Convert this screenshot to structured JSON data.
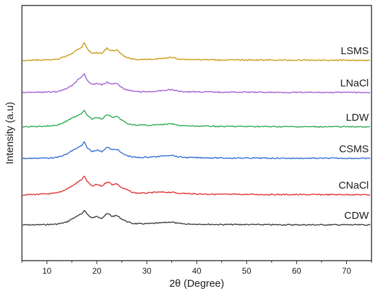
{
  "chart_data": {
    "type": "line",
    "title": "",
    "xlabel": "2θ (Degree)",
    "ylabel": "Intensity (a.u)",
    "xlim": [
      5,
      75
    ],
    "xticks": [
      10,
      20,
      30,
      40,
      50,
      60,
      70
    ],
    "yticks_shown": false,
    "grid": false,
    "legend": "labels at right end of each curve",
    "stacked_offset": true,
    "x": [
      5,
      8,
      10,
      12,
      13,
      14,
      15,
      16,
      17,
      17.5,
      18,
      19,
      20,
      21,
      22,
      22.5,
      23,
      24,
      25,
      26,
      27,
      28,
      30,
      32,
      34,
      35,
      36,
      38,
      40,
      45,
      50,
      55,
      60,
      65,
      70,
      75
    ],
    "series": [
      {
        "name": "CDW",
        "color": "#3a3a3a",
        "values": [
          0,
          0.2,
          0.5,
          1.0,
          2.0,
          3.5,
          7,
          10,
          13,
          17.5,
          13,
          8,
          10,
          8,
          13,
          12.5,
          10,
          11,
          7,
          4,
          2,
          1.5,
          1.5,
          2,
          3,
          3.5,
          2,
          1,
          1,
          0.5,
          0.5,
          0.3,
          0.2,
          0.2,
          0.2,
          0
        ]
      },
      {
        "name": "CNaCl",
        "color": "#e03030",
        "values": [
          0,
          0.5,
          1.0,
          2,
          4,
          7,
          10,
          14,
          18,
          22,
          16,
          10,
          12,
          10,
          15,
          14.5,
          12,
          13,
          8,
          6,
          3,
          2,
          2,
          3,
          3,
          3,
          2,
          1.5,
          1,
          0.5,
          0.5,
          0.3,
          0.2,
          0.2,
          0.2,
          0
        ]
      },
      {
        "name": "CSMS",
        "color": "#2f6fd4",
        "values": [
          0,
          0.3,
          0.5,
          1.0,
          3,
          5,
          9,
          12,
          15,
          19,
          13,
          8,
          10,
          8,
          13,
          12,
          10,
          11,
          6,
          3.5,
          2,
          1,
          1.5,
          2,
          3.5,
          4,
          2,
          1,
          1,
          0.5,
          0.5,
          0.3,
          0.2,
          0.2,
          0.2,
          0
        ]
      },
      {
        "name": "LDW",
        "color": "#2aaa55",
        "values": [
          0,
          0.5,
          1.0,
          2,
          4,
          7,
          10,
          13,
          16,
          20,
          14,
          9,
          11,
          9,
          14,
          13.5,
          11,
          12,
          8,
          4,
          2.5,
          2,
          2,
          2.5,
          3,
          3.5,
          2,
          1,
          1,
          0.5,
          0.5,
          0.3,
          0.2,
          0.2,
          0.2,
          0
        ]
      },
      {
        "name": "LNaCl",
        "color": "#a060d0",
        "values": [
          0,
          0.3,
          0.5,
          1.0,
          3,
          5,
          8,
          14,
          19,
          22,
          15,
          9,
          11,
          9,
          12,
          11,
          10,
          11,
          6,
          3,
          2,
          1,
          1,
          1.5,
          3,
          3.5,
          2,
          1,
          1,
          0.5,
          0.5,
          0.3,
          0.2,
          0.2,
          0.2,
          0
        ]
      },
      {
        "name": "LSMS",
        "color": "#c89a10",
        "values": [
          0,
          0.3,
          0.5,
          1.0,
          3,
          5,
          8,
          12,
          15,
          21,
          14,
          8,
          9,
          8,
          14,
          12,
          11,
          12,
          7,
          3,
          2,
          1,
          1,
          1.5,
          3,
          3.5,
          2,
          1,
          1,
          0.5,
          0.5,
          0.3,
          0.2,
          0.2,
          0.2,
          0
        ]
      }
    ]
  }
}
